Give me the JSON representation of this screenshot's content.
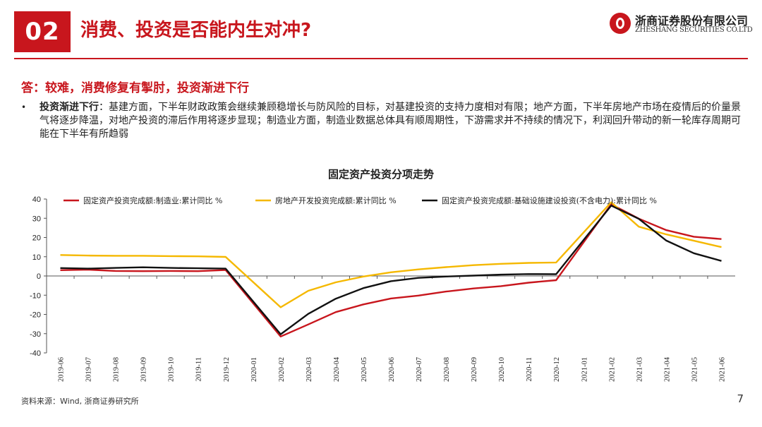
{
  "header": {
    "section_number": "02",
    "title": "消费、投资是否能内生对冲?",
    "logo_cn": "浙商证券股份有限公司",
    "logo_en": "ZHESHANG SECURITIES CO.LTD"
  },
  "answer": "答：较难，消费修复有掣肘，投资渐进下行",
  "bullet": {
    "lead": "投资渐进下行",
    "text": "：基建方面，下半年财政政策会继续兼顾稳增长与防风险的目标，对基建投资的支持力度相对有限；地产方面，下半年房地产市场在疫情后的价量景气将逐步降温，对地产投资的滞后作用将逐步显现；制造业方面，制造业数据总体具有顺周期性，下游需求并不持续的情况下，利润回升带动的新一轮库存周期可能在下半年有所趋弱"
  },
  "footer": {
    "source": "资料来源：Wind, 浙商证券研究所",
    "page": "7"
  },
  "chart_data": {
    "type": "line",
    "title": "固定资产投资分项走势",
    "categories": [
      "2019-06",
      "2019-07",
      "2019-08",
      "2019-09",
      "2019-10",
      "2019-11",
      "2019-12",
      "2020-01",
      "2020-02",
      "2020-03",
      "2020-04",
      "2020-05",
      "2020-06",
      "2020-07",
      "2020-08",
      "2020-09",
      "2020-10",
      "2020-11",
      "2020-12",
      "2021-01",
      "2021-02",
      "2021-03",
      "2021-04",
      "2021-05",
      "2021-06"
    ],
    "ylim": [
      -40,
      40
    ],
    "yticks": [
      40,
      30,
      20,
      10,
      0,
      -10,
      -20,
      -30,
      -40
    ],
    "legend_position": "top",
    "series": [
      {
        "name": "固定资产投资完成额:制造业:累计同比 %",
        "color": "#c8161d",
        "values": [
          3.0,
          3.3,
          2.6,
          2.5,
          2.6,
          2.5,
          3.1,
          null,
          -31.5,
          -25.2,
          -18.8,
          -14.8,
          -11.7,
          -10.2,
          -8.1,
          -6.5,
          -5.3,
          -3.5,
          -2.2,
          null,
          37.3,
          29.8,
          23.8,
          20.4,
          19.2
        ]
      },
      {
        "name": "房地产开发投资完成额:累计同比 %",
        "color": "#f5b800",
        "values": [
          10.9,
          10.6,
          10.5,
          10.5,
          10.3,
          10.2,
          9.9,
          null,
          -16.3,
          -7.7,
          -3.3,
          -0.3,
          1.9,
          3.4,
          4.6,
          5.6,
          6.3,
          6.8,
          7.0,
          null,
          38.3,
          25.6,
          21.6,
          18.3,
          15.0
        ]
      },
      {
        "name": "固定资产投资完成额:基础设施建设投资(不含电力):累计同比 %",
        "color": "#111111",
        "values": [
          4.1,
          3.8,
          4.2,
          4.5,
          4.2,
          4.0,
          3.8,
          null,
          -30.3,
          -19.7,
          -11.8,
          -6.3,
          -2.7,
          -1.0,
          -0.3,
          0.2,
          0.7,
          1.0,
          0.9,
          null,
          36.6,
          29.7,
          18.4,
          11.8,
          7.8
        ]
      }
    ]
  }
}
